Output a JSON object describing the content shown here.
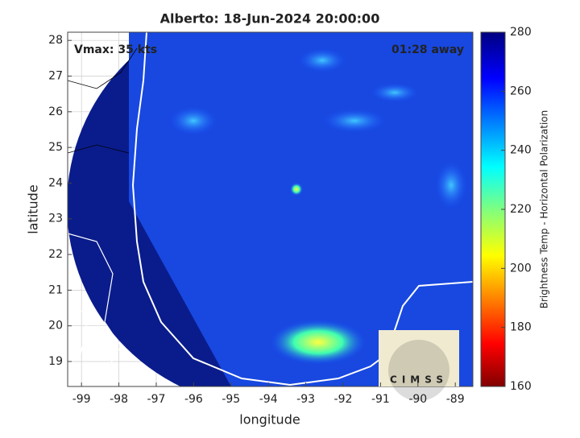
{
  "chart_data": {
    "type": "map",
    "title": "Alberto: 18-Jun-2024 20:00:00",
    "annotations": [
      "Vmax: 35 kts",
      "01:28 away"
    ],
    "xlabel": "longitude",
    "ylabel": "latitude",
    "xlim": [
      -99.37,
      -88.53
    ],
    "xticks": [
      -99,
      -98,
      -97,
      -96,
      -95,
      -94,
      -93,
      -92,
      -91,
      -90,
      -89
    ],
    "ylim": [
      18.3,
      28.23
    ],
    "yticks": [
      19,
      20,
      21,
      22,
      23,
      24,
      25,
      26,
      27,
      28
    ],
    "grid": true,
    "colorbar": {
      "label": "Brightness Temp - Horizontal Polarization",
      "lim": [
        160,
        280
      ],
      "ticks": [
        160,
        180,
        200,
        220,
        240,
        260,
        280
      ]
    },
    "logo_text": "CIMSS"
  }
}
